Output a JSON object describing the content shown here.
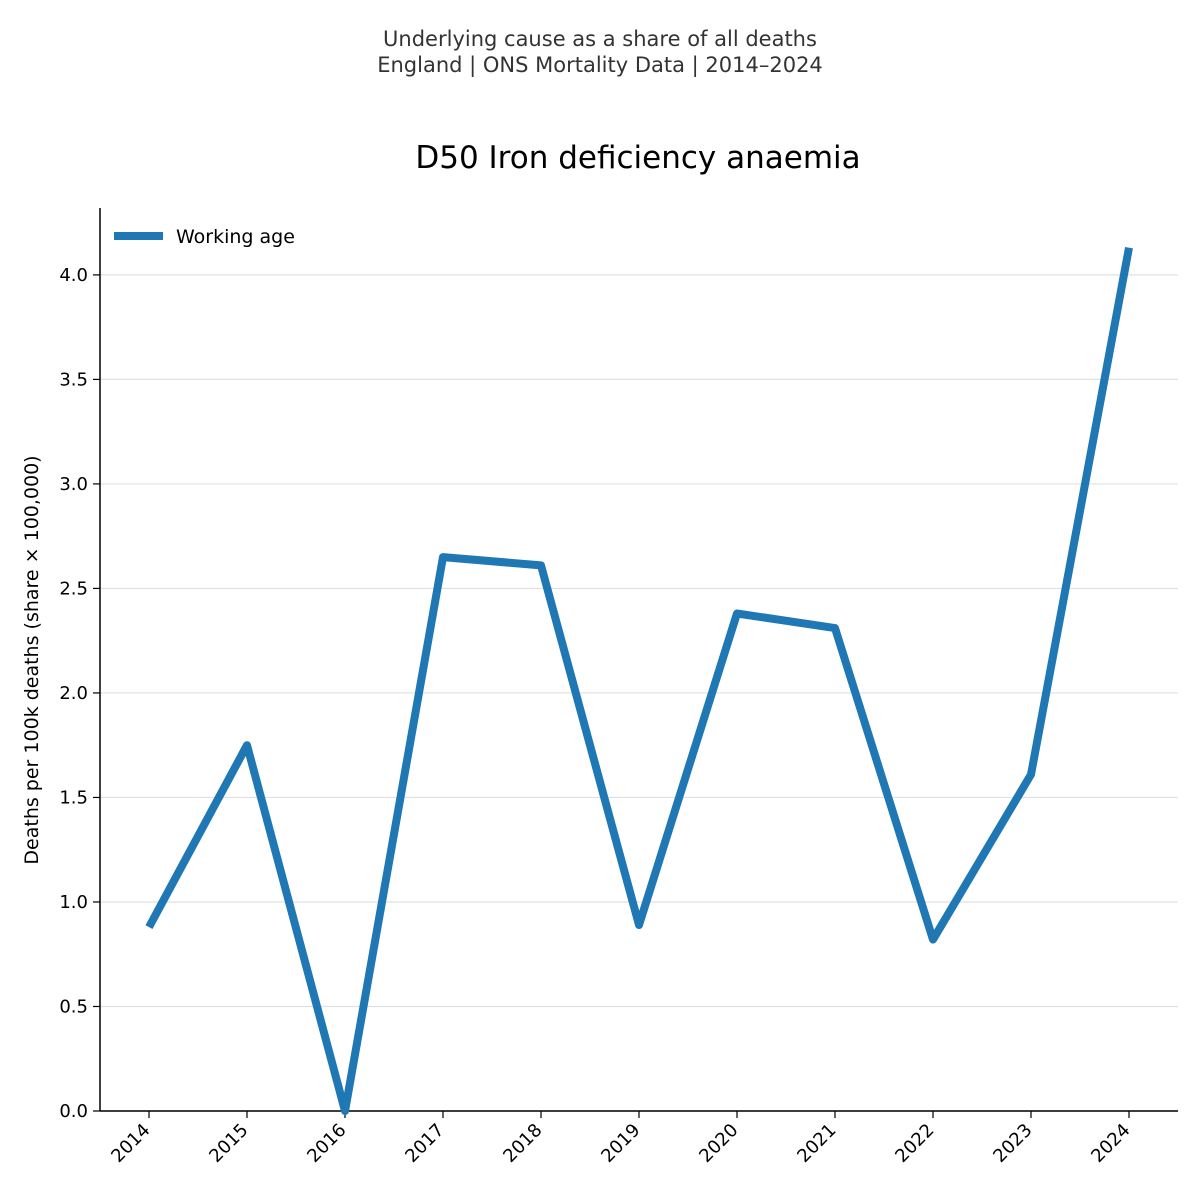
{
  "header": {
    "suptitle_line1": "Underlying cause as a share of all deaths",
    "suptitle_line2": "England | ONS Mortality Data | 2014–2024"
  },
  "chart_data": {
    "type": "line",
    "title": "D50 Iron deficiency anaemia",
    "xlabel": "",
    "ylabel": "Deaths per 100k deaths (share × 100,000)",
    "x": [
      "2014",
      "2015",
      "2016",
      "2017",
      "2018",
      "2019",
      "2020",
      "2021",
      "2022",
      "2023",
      "2024"
    ],
    "series": [
      {
        "name": "Working age",
        "color": "#1f77b4",
        "values": [
          0.88,
          1.75,
          0.0,
          2.65,
          2.61,
          0.89,
          2.38,
          2.31,
          0.82,
          1.61,
          4.13
        ]
      }
    ],
    "ylim": [
      0,
      4.32
    ],
    "yticks": [
      0.0,
      0.5,
      1.0,
      1.5,
      2.0,
      2.5,
      3.0,
      3.5,
      4.0
    ],
    "ytick_labels": [
      "0.0",
      "0.5",
      "1.0",
      "1.5",
      "2.0",
      "2.5",
      "3.0",
      "3.5",
      "4.0"
    ],
    "grid": "horizontal",
    "legend_position": "top-left"
  }
}
